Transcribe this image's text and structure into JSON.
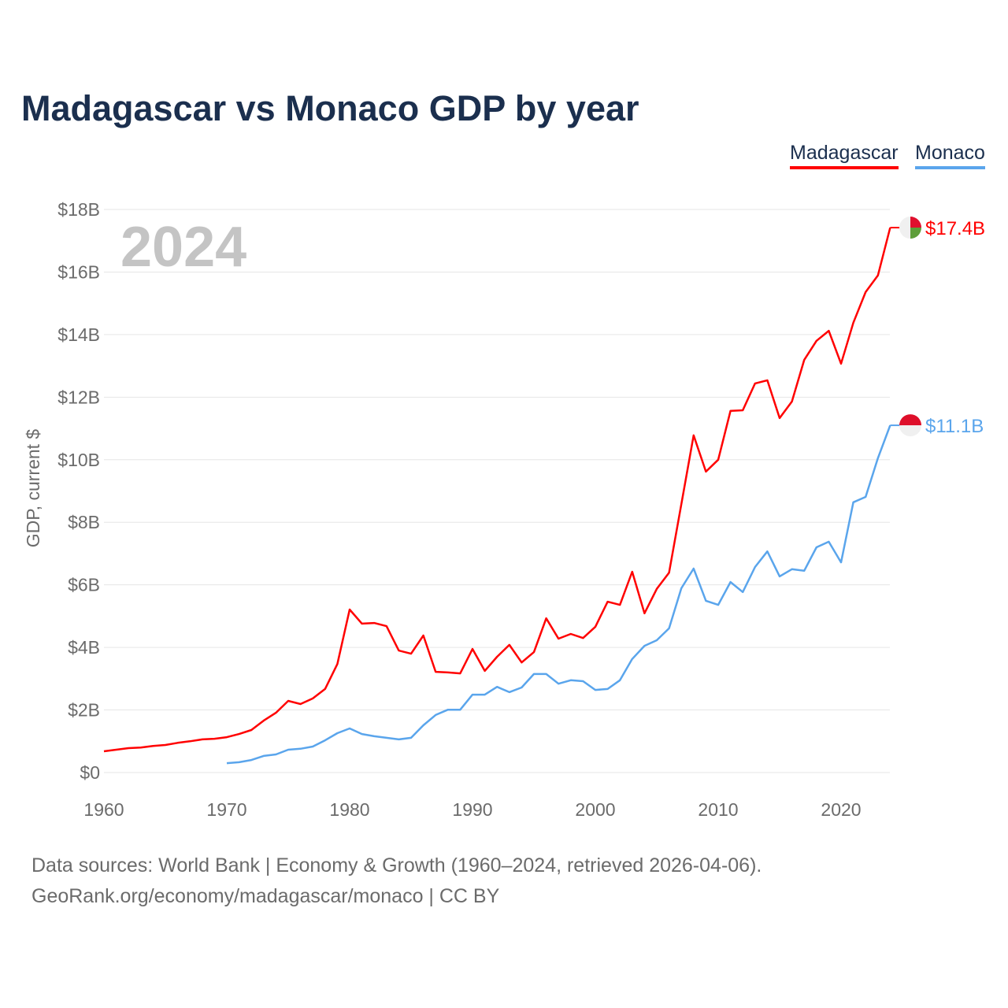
{
  "chart_data": {
    "type": "line",
    "title": "Madagascar vs Monaco GDP by year",
    "ylabel": "GDP, current $",
    "xlabel": "",
    "year_watermark": "2024",
    "xlim": [
      1960,
      2024
    ],
    "ylim": [
      0,
      18
    ],
    "x_ticks": [
      1960,
      1970,
      1980,
      1990,
      2000,
      2010,
      2020
    ],
    "y_ticks": [
      0,
      2,
      4,
      6,
      8,
      10,
      12,
      14,
      16,
      18
    ],
    "y_tick_labels": [
      "$0",
      "$2B",
      "$4B",
      "$6B",
      "$8B",
      "$10B",
      "$12B",
      "$14B",
      "$16B",
      "$18B"
    ],
    "grid": true,
    "legend_position": "top-right",
    "series": [
      {
        "name": "Madagascar",
        "color": "#ff0000",
        "end_label": "$17.4B",
        "flag": "madagascar-flag",
        "x_start": 1960,
        "values": [
          0.68,
          0.73,
          0.78,
          0.8,
          0.85,
          0.88,
          0.95,
          1.0,
          1.06,
          1.08,
          1.13,
          1.23,
          1.36,
          1.66,
          1.91,
          2.29,
          2.19,
          2.37,
          2.67,
          3.47,
          5.21,
          4.76,
          4.78,
          4.68,
          3.9,
          3.8,
          4.38,
          3.22,
          3.2,
          3.17,
          3.95,
          3.25,
          3.7,
          4.08,
          3.52,
          3.85,
          4.93,
          4.28,
          4.43,
          4.3,
          4.66,
          5.46,
          5.36,
          6.42,
          5.09,
          5.87,
          6.39,
          8.58,
          10.78,
          9.62,
          10.0,
          11.56,
          11.58,
          12.44,
          12.54,
          11.33,
          11.86,
          13.19,
          13.8,
          14.12,
          13.07,
          14.38,
          15.36,
          15.89,
          17.42
        ]
      },
      {
        "name": "Monaco",
        "color": "#5aa5ec",
        "end_label": "$11.1B",
        "flag": "monaco-flag",
        "x_start": 1970,
        "values": [
          0.3,
          0.33,
          0.4,
          0.53,
          0.58,
          0.73,
          0.76,
          0.83,
          1.03,
          1.26,
          1.41,
          1.23,
          1.16,
          1.11,
          1.06,
          1.11,
          1.51,
          1.84,
          2.01,
          2.01,
          2.49,
          2.49,
          2.74,
          2.57,
          2.72,
          3.15,
          3.15,
          2.84,
          2.95,
          2.92,
          2.64,
          2.67,
          2.95,
          3.63,
          4.05,
          4.23,
          4.61,
          5.89,
          6.52,
          5.49,
          5.36,
          6.09,
          5.77,
          6.57,
          7.07,
          6.27,
          6.5,
          6.45,
          7.2,
          7.38,
          6.72,
          8.64,
          8.81,
          10.05,
          11.1
        ]
      }
    ]
  },
  "footer": {
    "line1": "Data sources: World Bank | Economy & Growth (1960–2024, retrieved 2026-04-06).",
    "line2": "GeoRank.org/economy/madagascar/monaco | CC BY"
  }
}
